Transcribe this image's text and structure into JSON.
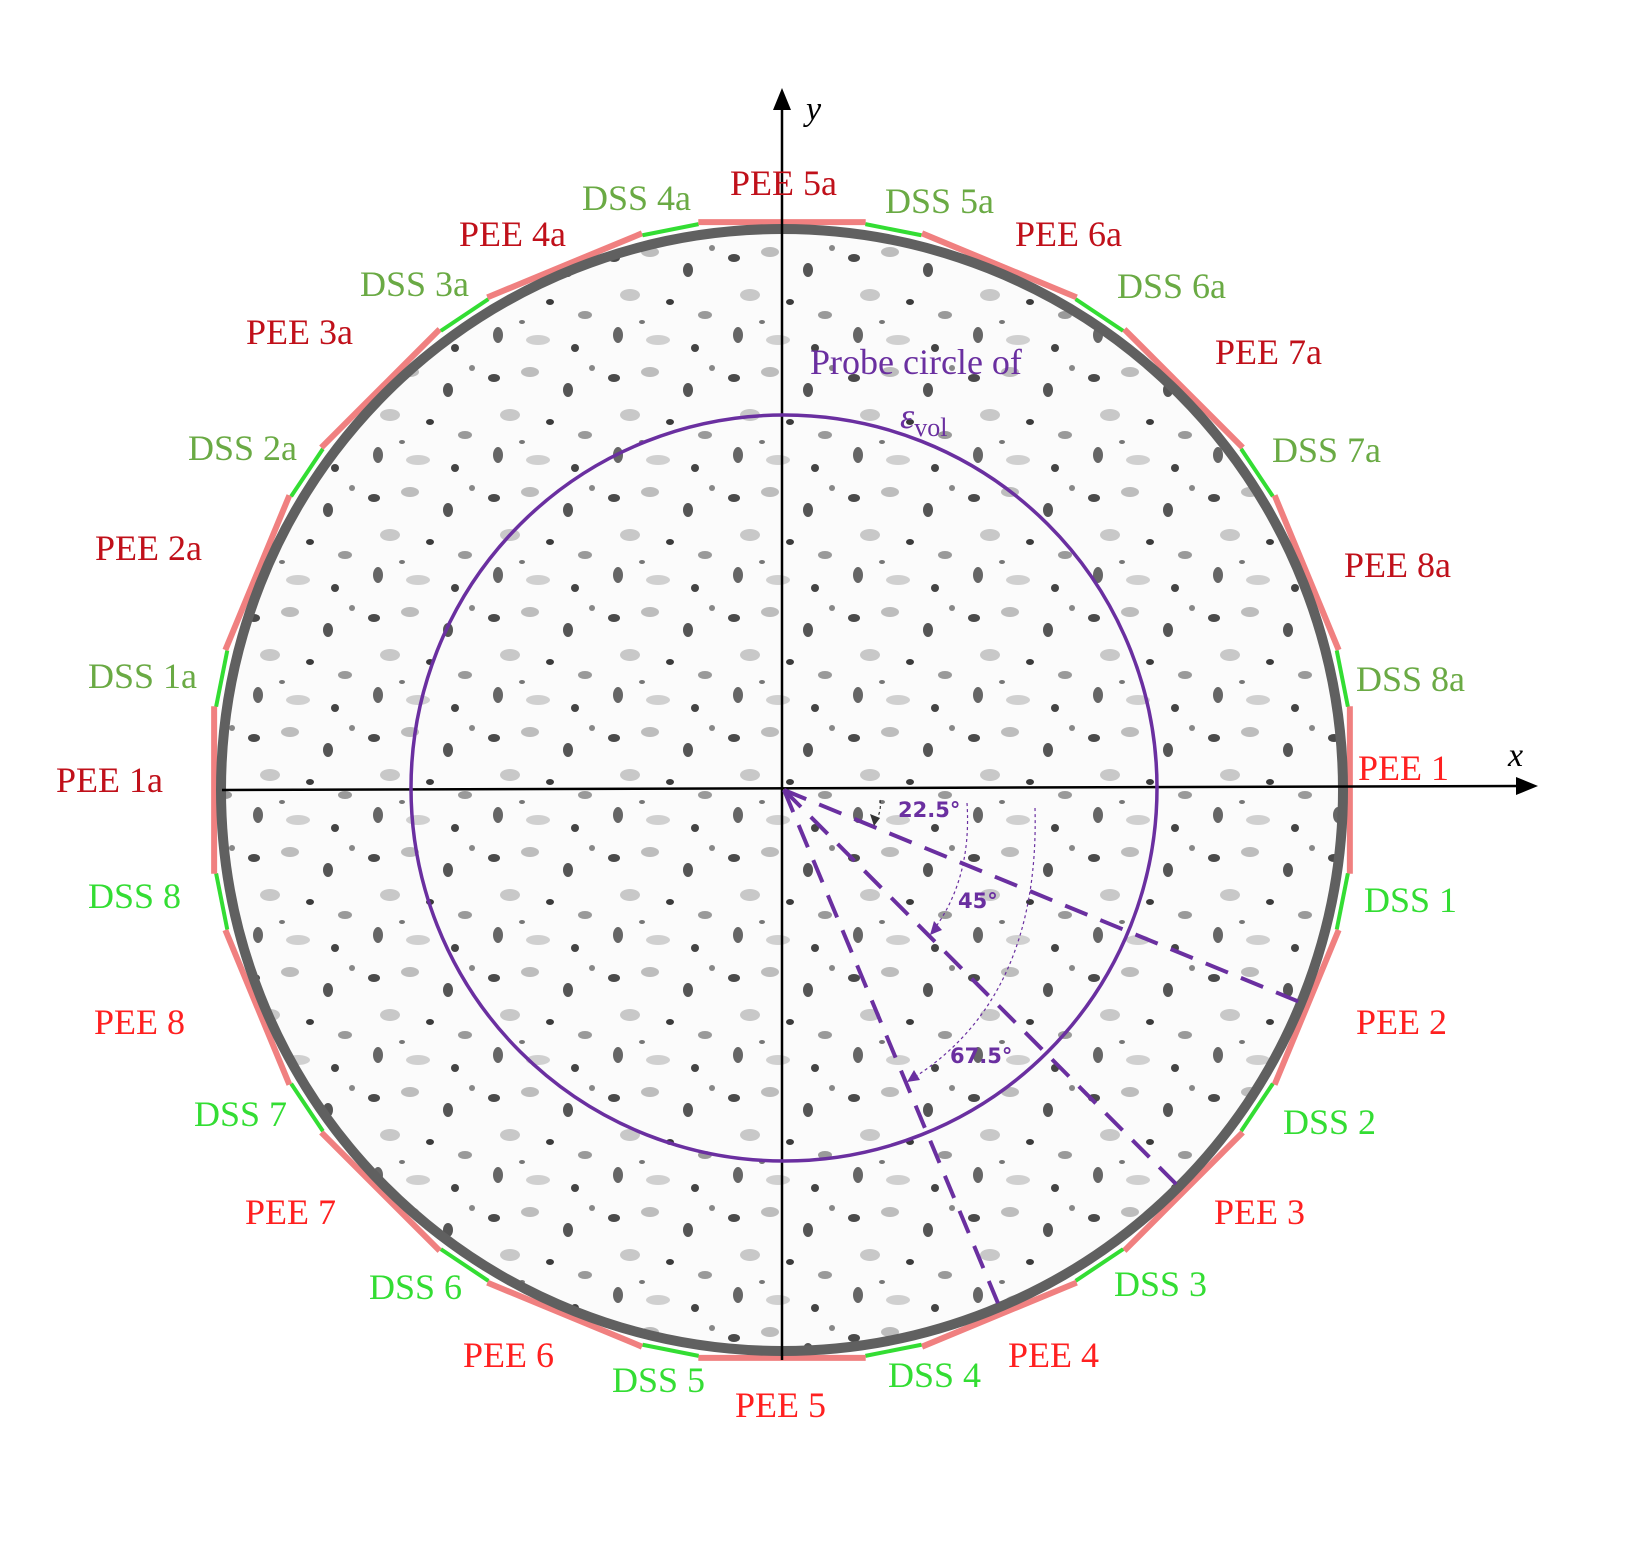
{
  "axes": {
    "x_label": "x",
    "y_label": "y"
  },
  "probe": {
    "title": "Probe circle of",
    "symbol": "ε",
    "subscript": "vol",
    "color": "#6a2fa0"
  },
  "angles": [
    "22.5°",
    "45°",
    "67.5°"
  ],
  "colors": {
    "pee_primary": "#ff2020",
    "pee_secondary": "#c0101a",
    "dss_primary": "#33dd33",
    "dss_secondary": "#6aaa44",
    "pee_band": "#f08080",
    "ring": "#606060",
    "probe": "#6a2fa0"
  },
  "pee_labels": [
    {
      "text": "PEE 1",
      "set": "primary"
    },
    {
      "text": "PEE 2",
      "set": "primary"
    },
    {
      "text": "PEE 3",
      "set": "primary"
    },
    {
      "text": "PEE 4",
      "set": "primary"
    },
    {
      "text": "PEE 5",
      "set": "primary"
    },
    {
      "text": "PEE 6",
      "set": "primary"
    },
    {
      "text": "PEE 7",
      "set": "primary"
    },
    {
      "text": "PEE 8",
      "set": "primary"
    },
    {
      "text": "PEE 1a",
      "set": "secondary"
    },
    {
      "text": "PEE 2a",
      "set": "secondary"
    },
    {
      "text": "PEE 3a",
      "set": "secondary"
    },
    {
      "text": "PEE 4a",
      "set": "secondary"
    },
    {
      "text": "PEE 5a",
      "set": "secondary"
    },
    {
      "text": "PEE 6a",
      "set": "secondary"
    },
    {
      "text": "PEE 7a",
      "set": "secondary"
    },
    {
      "text": "PEE 8a",
      "set": "secondary"
    }
  ],
  "dss_labels": [
    {
      "text": "DSS 1",
      "set": "primary"
    },
    {
      "text": "DSS 2",
      "set": "primary"
    },
    {
      "text": "DSS 3",
      "set": "primary"
    },
    {
      "text": "DSS 4",
      "set": "primary"
    },
    {
      "text": "DSS 5",
      "set": "primary"
    },
    {
      "text": "DSS 6",
      "set": "primary"
    },
    {
      "text": "DSS 7",
      "set": "primary"
    },
    {
      "text": "DSS 8",
      "set": "primary"
    },
    {
      "text": "DSS 1a",
      "set": "secondary"
    },
    {
      "text": "DSS 2a",
      "set": "secondary"
    },
    {
      "text": "DSS 3a",
      "set": "secondary"
    },
    {
      "text": "DSS 4a",
      "set": "secondary"
    },
    {
      "text": "DSS 5a",
      "set": "secondary"
    },
    {
      "text": "DSS 6a",
      "set": "secondary"
    },
    {
      "text": "DSS 7a",
      "set": "secondary"
    },
    {
      "text": "DSS 8a",
      "set": "secondary"
    }
  ]
}
